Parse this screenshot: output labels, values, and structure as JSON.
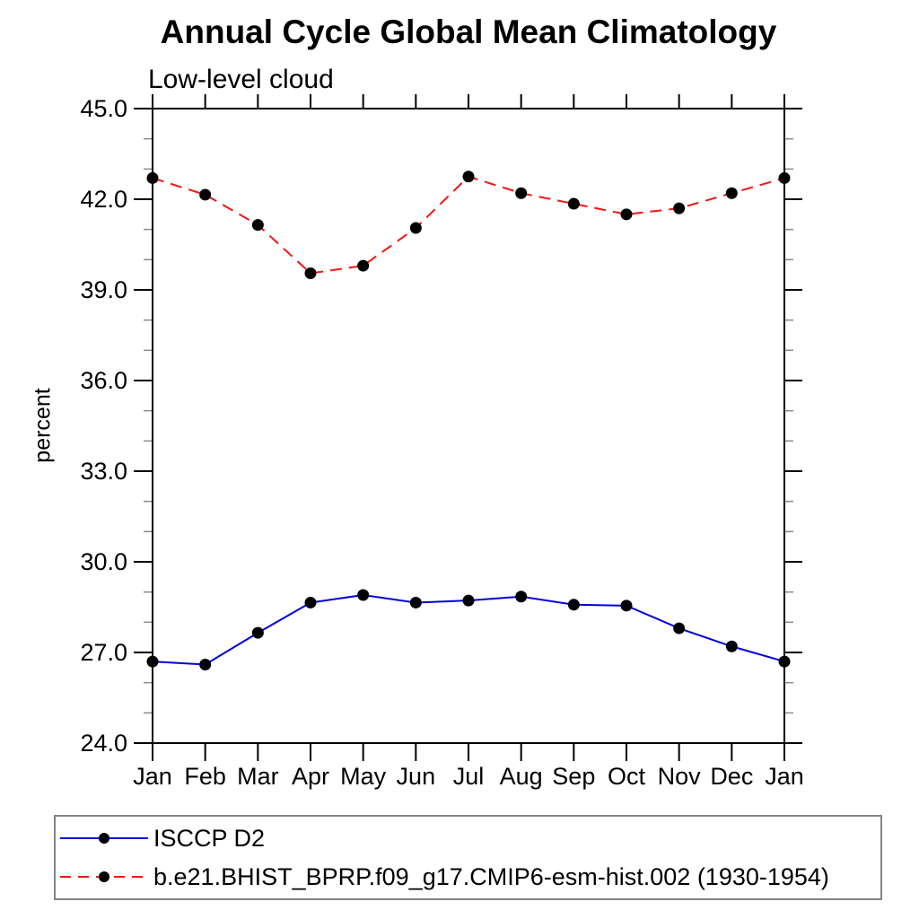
{
  "chart_data": {
    "type": "line",
    "title": "Annual Cycle Global Mean Climatology",
    "subtitle": "Low-level cloud",
    "ylabel": "percent",
    "xlabel": "",
    "categories": [
      "Jan",
      "Feb",
      "Mar",
      "Apr",
      "May",
      "Jun",
      "Jul",
      "Aug",
      "Sep",
      "Oct",
      "Nov",
      "Dec",
      "Jan"
    ],
    "ylim": [
      24.0,
      45.0
    ],
    "yticks": [
      45.0,
      42.0,
      39.0,
      36.0,
      33.0,
      30.0,
      27.0,
      24.0
    ],
    "ytick_labels": [
      "45.0",
      "42.0",
      "39.0",
      "36.0",
      "33.0",
      "30.0",
      "27.0",
      "24.0"
    ],
    "minor_tick_interval": 1.0,
    "grid": false,
    "legend_position": "bottom-box",
    "series": [
      {
        "name": "ISCCP D2",
        "color": "#0000e0",
        "line_style": "solid",
        "marker": "filled-circle",
        "marker_color": "#000000",
        "values": [
          26.7,
          26.6,
          27.65,
          28.65,
          28.9,
          28.65,
          28.72,
          28.85,
          28.58,
          28.55,
          27.8,
          27.2,
          26.7
        ]
      },
      {
        "name": "b.e21.BHIST_BPRP.f09_g17.CMIP6-esm-hist.002 (1930-1954)",
        "color": "#f51414",
        "line_style": "dashed",
        "marker": "filled-circle",
        "marker_color": "#000000",
        "values": [
          42.7,
          42.15,
          41.15,
          39.55,
          39.8,
          41.05,
          42.75,
          42.2,
          41.85,
          41.5,
          41.7,
          42.2,
          42.7
        ]
      }
    ]
  }
}
